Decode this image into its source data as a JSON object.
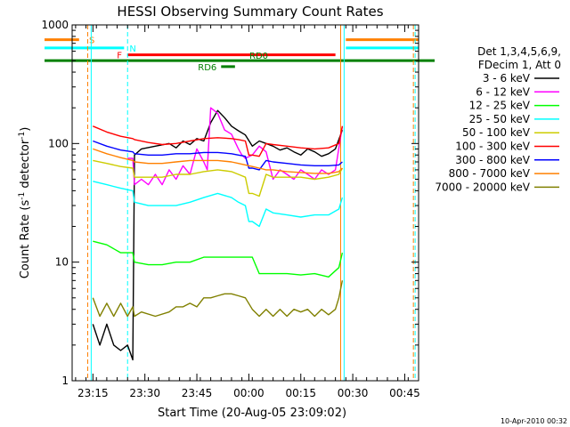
{
  "chart_data": {
    "type": "line",
    "title": "HESSI Observing Summary Count Rates",
    "xlabel": "Start Time (20-Aug-05 23:09:02)",
    "ylabel_main": "Count Rate (s",
    "ylabel_sup1": "-1",
    "ylabel_mid": " detector",
    "ylabel_sup2": "-1",
    "ylabel_end": ")",
    "xlim": [
      0,
      100
    ],
    "ylim": [
      1,
      1000
    ],
    "yscale": "log",
    "x_ticks": [
      {
        "t": 6,
        "label": "23:15"
      },
      {
        "t": 21,
        "label": "23:30"
      },
      {
        "t": 36,
        "label": "23:45"
      },
      {
        "t": 51,
        "label": "00:00"
      },
      {
        "t": 66,
        "label": "00:15"
      },
      {
        "t": 81,
        "label": "00:30"
      },
      {
        "t": 96,
        "label": "00:45"
      }
    ],
    "y_ticks": [
      {
        "v": 1,
        "label": "1"
      },
      {
        "v": 10,
        "label": "10"
      },
      {
        "v": 100,
        "label": "100"
      },
      {
        "v": 1000,
        "label": "1000"
      }
    ],
    "legend_header": [
      "Det 1,3,4,5,6,9,",
      "FDecim 1, Att 0"
    ],
    "timestamp": "10-Apr-2010 00:32",
    "series": [
      {
        "name": "3 - 6 keV",
        "color": "#000000",
        "x": [
          6,
          8,
          10,
          12,
          14,
          16,
          17.5,
          18,
          20,
          24,
          28,
          30,
          32,
          34,
          36,
          38,
          40,
          42,
          44,
          46,
          48,
          50,
          52,
          54,
          56,
          58,
          60,
          62,
          64,
          66,
          68,
          70,
          72,
          74,
          76,
          78
        ],
        "y": [
          3,
          2,
          3,
          2,
          1.8,
          2,
          1.5,
          80,
          90,
          95,
          100,
          92,
          105,
          98,
          110,
          105,
          150,
          190,
          165,
          140,
          128,
          118,
          95,
          105,
          100,
          95,
          88,
          92,
          85,
          80,
          90,
          85,
          78,
          82,
          90,
          130
        ]
      },
      {
        "name": "6 - 12 keV",
        "color": "#ff00ff",
        "x": [
          16,
          17.5,
          18,
          20,
          22,
          24,
          26,
          28,
          30,
          32,
          34,
          36,
          38,
          39,
          40,
          42,
          44,
          46,
          48,
          49,
          50,
          52,
          54,
          56,
          58,
          60,
          62,
          64,
          66,
          68,
          70,
          72,
          74,
          76,
          78
        ],
        "y": [
          75,
          75,
          45,
          50,
          45,
          55,
          45,
          60,
          50,
          65,
          55,
          90,
          70,
          60,
          200,
          180,
          130,
          120,
          90,
          80,
          75,
          80,
          95,
          85,
          50,
          60,
          55,
          50,
          60,
          55,
          50,
          60,
          55,
          60,
          140
        ]
      },
      {
        "name": "12 - 25 keV",
        "color": "#00ff00",
        "x": [
          6,
          10,
          14,
          17.5,
          18,
          22,
          26,
          30,
          34,
          38,
          42,
          46,
          48,
          50,
          52,
          54,
          56,
          58,
          62,
          66,
          70,
          74,
          77,
          78
        ],
        "y": [
          15,
          14,
          12,
          12,
          10,
          9.5,
          9.5,
          10,
          10,
          11,
          11,
          11,
          11,
          11,
          11,
          8,
          8,
          8,
          8,
          7.8,
          8,
          7.5,
          9,
          12
        ]
      },
      {
        "name": "25 - 50 keV",
        "color": "#00ffff",
        "x": [
          6,
          10,
          14,
          17.5,
          18,
          22,
          26,
          30,
          34,
          38,
          42,
          46,
          48,
          50,
          51,
          52,
          54,
          56,
          58,
          62,
          66,
          70,
          74,
          77,
          78
        ],
        "y": [
          48,
          45,
          42,
          40,
          32,
          30,
          30,
          30,
          32,
          35,
          38,
          35,
          32,
          30,
          22,
          22,
          20,
          28,
          26,
          25,
          24,
          25,
          25,
          28,
          35
        ]
      },
      {
        "name": "50 - 100 keV",
        "color": "#cccc00",
        "x": [
          6,
          10,
          14,
          17.5,
          18,
          22,
          26,
          30,
          34,
          38,
          42,
          46,
          48,
          50,
          51,
          52,
          54,
          56,
          58,
          62,
          66,
          70,
          74,
          77,
          78
        ],
        "y": [
          72,
          68,
          64,
          62,
          52,
          52,
          52,
          55,
          55,
          58,
          60,
          58,
          55,
          52,
          38,
          38,
          36,
          55,
          52,
          52,
          52,
          50,
          52,
          55,
          62
        ]
      },
      {
        "name": "100 - 300 keV",
        "color": "#ff0000",
        "x": [
          6,
          10,
          14,
          17.5,
          18,
          22,
          26,
          30,
          34,
          38,
          42,
          46,
          48,
          50,
          51,
          52,
          54,
          56,
          58,
          62,
          66,
          70,
          74,
          77,
          78
        ],
        "y": [
          140,
          125,
          115,
          110,
          108,
          102,
          98,
          100,
          105,
          110,
          112,
          110,
          108,
          105,
          80,
          80,
          78,
          100,
          98,
          95,
          92,
          90,
          92,
          100,
          140
        ]
      },
      {
        "name": "300 - 800 keV",
        "color": "#0000ff",
        "x": [
          6,
          10,
          14,
          17.5,
          18,
          22,
          26,
          30,
          34,
          38,
          42,
          46,
          48,
          50,
          51,
          52,
          54,
          56,
          58,
          62,
          66,
          70,
          74,
          77,
          78
        ],
        "y": [
          105,
          95,
          88,
          85,
          82,
          80,
          80,
          82,
          82,
          84,
          84,
          82,
          80,
          78,
          62,
          62,
          60,
          72,
          70,
          68,
          66,
          65,
          65,
          66,
          70
        ]
      },
      {
        "name": "800 - 7000 keV",
        "color": "#ff8000",
        "x": [
          6,
          10,
          14,
          17.5,
          18,
          22,
          26,
          30,
          34,
          38,
          42,
          46,
          48,
          50,
          52,
          54,
          56,
          58,
          62,
          66,
          70,
          74,
          77,
          78
        ],
        "y": [
          90,
          82,
          76,
          72,
          70,
          68,
          68,
          70,
          72,
          72,
          72,
          70,
          68,
          66,
          64,
          62,
          60,
          60,
          58,
          57,
          56,
          56,
          58,
          62
        ]
      },
      {
        "name": "7000 - 20000 keV",
        "color": "#808000",
        "x": [
          6,
          8,
          10,
          12,
          14,
          16,
          17.5,
          18,
          20,
          24,
          28,
          30,
          32,
          34,
          36,
          38,
          40,
          42,
          44,
          46,
          48,
          50,
          52,
          54,
          56,
          58,
          60,
          62,
          64,
          66,
          68,
          70,
          72,
          74,
          76,
          77,
          78
        ],
        "y": [
          5,
          3.5,
          4.5,
          3.5,
          4.5,
          3.5,
          4.2,
          3.5,
          3.8,
          3.5,
          3.8,
          4.2,
          4.2,
          4.5,
          4.2,
          5,
          5,
          5.2,
          5.4,
          5.4,
          5.2,
          5,
          4,
          3.5,
          4,
          3.5,
          4,
          3.5,
          4,
          3.8,
          4,
          3.5,
          4,
          3.6,
          4,
          5,
          7
        ]
      }
    ],
    "annotations": {
      "S": {
        "label": "S",
        "x_start": 0,
        "x_end": 2,
        "x2_start": 79,
        "x2_end": 100,
        "y": 750,
        "color": "#ff8000"
      },
      "N": {
        "label": "N",
        "x_start": 0,
        "x_end": 15,
        "x2_start": 79,
        "x2_end": 100,
        "y": 640,
        "color": "#00ffff"
      },
      "F": {
        "label": "F",
        "x_start": 16,
        "x_end": 76,
        "y": 560,
        "color": "#ff0000"
      },
      "RD0": {
        "label": "RD0",
        "x_start": 0,
        "x_end": 100,
        "y": 500,
        "color": "#008000"
      },
      "RD6": {
        "label": "RD6",
        "x_start": 43,
        "x_end": 47,
        "y": 445,
        "color": "#008000"
      }
    },
    "vlines": [
      {
        "x": 4.5,
        "color": "#ff8000",
        "style": "dashed"
      },
      {
        "x": 5.5,
        "color": "#00ffff",
        "style": "solid"
      },
      {
        "x": 16,
        "color": "#00ffff",
        "style": "dashed"
      },
      {
        "x": 77.5,
        "color": "#ff8000",
        "style": "solid"
      },
      {
        "x": 78.5,
        "color": "#00ffff",
        "style": "solid"
      },
      {
        "x": 98.5,
        "color": "#ff8000",
        "style": "dashed"
      },
      {
        "x": 99,
        "color": "#00ffff",
        "style": "dashed"
      }
    ]
  }
}
